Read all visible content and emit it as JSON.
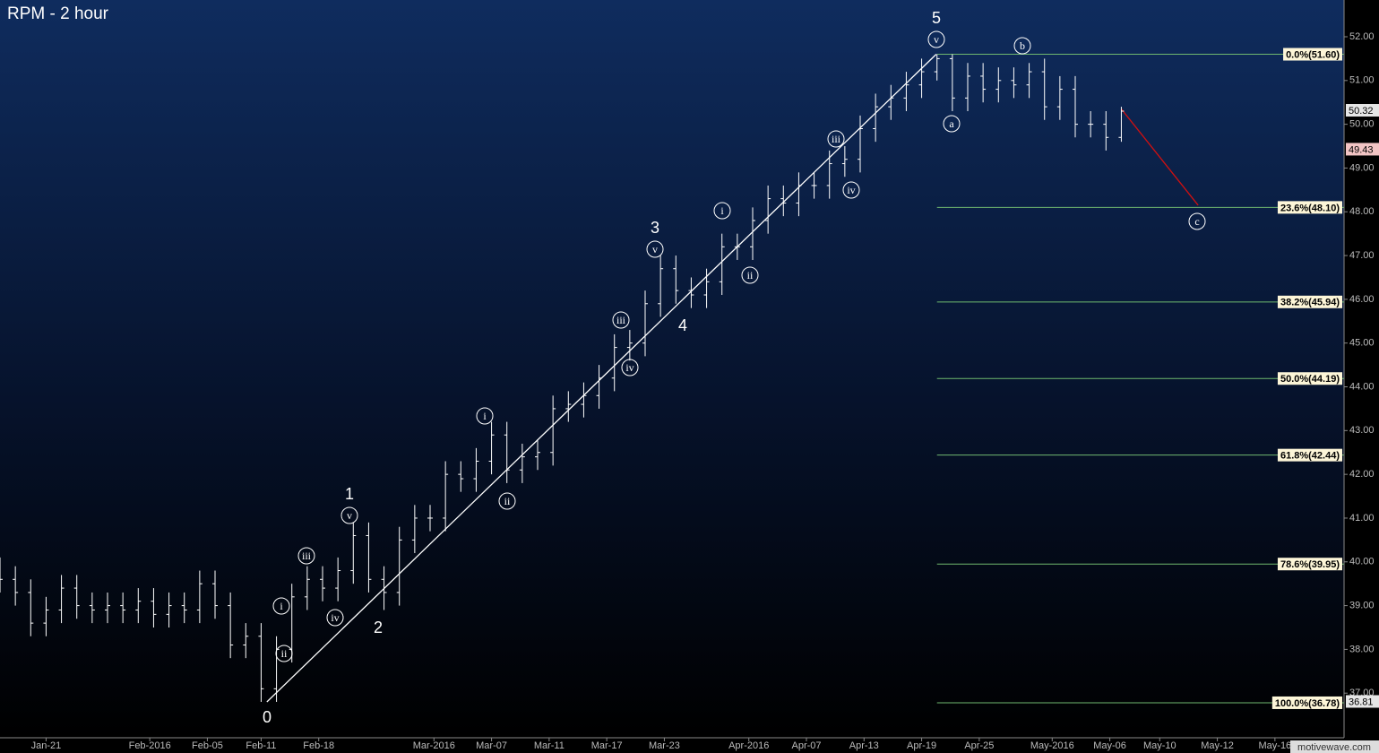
{
  "chart_data": {
    "type": "ohlc",
    "title": "RPM - 2 hour",
    "watermark": "motivewave.com",
    "bar_color": "#ffffff",
    "xlim": [
      0,
      350
    ],
    "ylim": [
      35.98,
      52.84
    ],
    "xticks": [
      {
        "value": 12,
        "label": "Jan-21"
      },
      {
        "value": 39,
        "label": "Feb-2016"
      },
      {
        "value": 54,
        "label": "Feb-05"
      },
      {
        "value": 68,
        "label": "Feb-11"
      },
      {
        "value": 83,
        "label": "Feb-18"
      },
      {
        "value": 113,
        "label": "Mar-2016"
      },
      {
        "value": 128,
        "label": "Mar-07"
      },
      {
        "value": 143,
        "label": "Mar-11"
      },
      {
        "value": 158,
        "label": "Mar-17"
      },
      {
        "value": 173,
        "label": "Mar-23"
      },
      {
        "value": 195,
        "label": "Apr-2016"
      },
      {
        "value": 210,
        "label": "Apr-07"
      },
      {
        "value": 225,
        "label": "Apr-13"
      },
      {
        "value": 240,
        "label": "Apr-19"
      },
      {
        "value": 255,
        "label": "Apr-25"
      },
      {
        "value": 274,
        "label": "May-2016"
      },
      {
        "value": 289,
        "label": "May-06"
      },
      {
        "value": 302,
        "label": "May-10"
      },
      {
        "value": 317,
        "label": "May-12"
      },
      {
        "value": 332,
        "label": "May-16"
      }
    ],
    "yticks": [
      {
        "value": 52,
        "label": "52.00"
      },
      {
        "value": 51,
        "label": "51.00"
      },
      {
        "value": 50,
        "label": "50.00"
      },
      {
        "value": 49,
        "label": "49.00"
      },
      {
        "value": 48,
        "label": "48.00"
      },
      {
        "value": 47,
        "label": "47.00"
      },
      {
        "value": 46,
        "label": "46.00"
      },
      {
        "value": 45,
        "label": "45.00"
      },
      {
        "value": 44,
        "label": "44.00"
      },
      {
        "value": 43,
        "label": "43.00"
      },
      {
        "value": 42,
        "label": "42.00"
      },
      {
        "value": 41,
        "label": "41.00"
      },
      {
        "value": 40,
        "label": "40.00"
      },
      {
        "value": 39,
        "label": "39.00"
      },
      {
        "value": 38,
        "label": "38.00"
      },
      {
        "value": 37,
        "label": "37.00"
      }
    ],
    "x": [
      0,
      4,
      8,
      12,
      16,
      20,
      24,
      28,
      32,
      36,
      40,
      44,
      48,
      52,
      56,
      60,
      64,
      68,
      72,
      76,
      80,
      84,
      88,
      92,
      96,
      100,
      104,
      108,
      112,
      116,
      120,
      124,
      128,
      132,
      136,
      140,
      144,
      148,
      152,
      156,
      160,
      164,
      168,
      172,
      176,
      180,
      184,
      188,
      192,
      196,
      200,
      204,
      208,
      212,
      216,
      220,
      224,
      228,
      232,
      236,
      240,
      244,
      248,
      252,
      256,
      260,
      264,
      268,
      272,
      276,
      280,
      284,
      288,
      292
    ],
    "open": [
      39.8,
      39.6,
      39.3,
      38.6,
      38.9,
      39.4,
      39.0,
      38.9,
      39.0,
      38.9,
      39.1,
      38.8,
      39.0,
      38.9,
      39.5,
      39.0,
      38.1,
      38.3,
      37.1,
      38.0,
      39.2,
      39.6,
      39.4,
      39.8,
      40.6,
      39.6,
      39.3,
      40.5,
      41.0,
      41.0,
      42.0,
      41.9,
      42.3,
      42.9,
      42.1,
      42.4,
      42.5,
      43.5,
      43.6,
      43.8,
      44.2,
      44.9,
      45.0,
      45.9,
      46.7,
      46.2,
      46.1,
      46.4,
      47.2,
      47.2,
      47.8,
      48.3,
      48.2,
      48.6,
      48.6,
      49.1,
      49.2,
      49.9,
      50.4,
      50.6,
      50.9,
      51.2,
      51.5,
      50.6,
      51.1,
      50.8,
      51.0,
      50.9,
      51.2,
      50.4,
      50.8,
      50.0,
      50.0,
      49.7
    ],
    "high": [
      40.1,
      39.9,
      39.6,
      39.2,
      39.7,
      39.7,
      39.3,
      39.3,
      39.3,
      39.4,
      39.4,
      39.3,
      39.3,
      39.8,
      39.8,
      39.3,
      38.6,
      38.6,
      38.3,
      39.5,
      39.9,
      39.9,
      40.1,
      40.9,
      40.9,
      39.9,
      40.8,
      41.3,
      41.3,
      42.3,
      42.3,
      42.6,
      43.2,
      43.2,
      42.7,
      42.8,
      43.8,
      43.9,
      44.1,
      44.5,
      45.2,
      45.3,
      46.2,
      47.0,
      47.0,
      46.5,
      46.7,
      47.5,
      47.5,
      48.1,
      48.6,
      48.6,
      48.9,
      48.9,
      49.4,
      49.5,
      50.2,
      50.7,
      50.9,
      51.2,
      51.5,
      51.6,
      51.6,
      51.4,
      51.4,
      51.3,
      51.3,
      51.4,
      51.5,
      51.1,
      51.1,
      50.3,
      50.3,
      50.4
    ],
    "low": [
      39.3,
      39.0,
      38.3,
      38.3,
      38.6,
      38.7,
      38.6,
      38.6,
      38.6,
      38.6,
      38.5,
      38.5,
      38.6,
      38.6,
      38.7,
      37.8,
      37.8,
      36.8,
      36.8,
      37.7,
      38.9,
      39.1,
      39.1,
      39.5,
      39.3,
      38.9,
      39.0,
      40.2,
      40.7,
      40.7,
      41.6,
      41.6,
      42.0,
      41.8,
      41.8,
      42.1,
      42.2,
      43.2,
      43.3,
      43.5,
      43.9,
      44.6,
      44.7,
      45.6,
      45.9,
      45.8,
      45.8,
      46.1,
      46.9,
      46.9,
      47.5,
      47.9,
      47.9,
      48.3,
      48.3,
      48.8,
      48.9,
      49.6,
      50.1,
      50.3,
      50.6,
      51.0,
      50.3,
      50.3,
      50.5,
      50.5,
      50.6,
      50.6,
      50.1,
      50.1,
      49.7,
      49.7,
      49.4,
      49.6
    ],
    "close": [
      39.6,
      39.3,
      38.6,
      38.9,
      39.4,
      39.0,
      38.9,
      39.0,
      38.9,
      39.1,
      38.8,
      39.0,
      38.9,
      39.5,
      39.0,
      38.1,
      38.3,
      37.1,
      38.0,
      39.2,
      39.6,
      39.4,
      39.8,
      40.6,
      39.6,
      39.3,
      40.5,
      41.0,
      41.0,
      42.0,
      41.9,
      42.3,
      42.9,
      42.1,
      42.4,
      42.5,
      43.5,
      43.6,
      43.8,
      44.2,
      44.9,
      45.0,
      45.9,
      46.7,
      46.2,
      46.1,
      46.4,
      47.2,
      47.2,
      47.8,
      48.3,
      48.2,
      48.6,
      48.6,
      49.1,
      49.2,
      49.9,
      50.4,
      50.6,
      50.9,
      51.2,
      51.5,
      50.6,
      51.1,
      50.8,
      51.0,
      50.9,
      51.2,
      50.4,
      50.8,
      50.0,
      50.0,
      49.7,
      50.3
    ],
    "trendline": {
      "color": "#ffffff",
      "x": [
        69.5,
        243.8
      ],
      "values": [
        36.8,
        51.6
      ]
    },
    "projection": {
      "color": "#d01010",
      "x": [
        292,
        312
      ],
      "values": [
        50.35,
        48.15
      ]
    },
    "fib_color": "#6fb86f",
    "fib_start": 244,
    "fib_levels": [
      {
        "value": 51.6,
        "label": "0.0%(51.60)"
      },
      {
        "value": 48.1,
        "label": "23.6%(48.10)"
      },
      {
        "value": 45.94,
        "label": "38.2%(45.94)"
      },
      {
        "value": 44.19,
        "label": "50.0%(44.19)"
      },
      {
        "value": 42.44,
        "label": "61.8%(42.44)"
      },
      {
        "value": 39.95,
        "label": "78.6%(39.95)"
      },
      {
        "value": 36.78,
        "label": "100.0%(36.78)"
      }
    ],
    "price_markers": [
      {
        "value": 50.32,
        "color": "#e6e6e6"
      },
      {
        "value": 49.43,
        "color": "#f2c4c4"
      },
      {
        "value": 36.81,
        "color": "#e6e6e6"
      }
    ],
    "wave_labels": [
      {
        "text": "0",
        "circled": false
      },
      {
        "text": "i",
        "circled": true
      },
      {
        "text": "ii",
        "circled": true
      },
      {
        "text": "iii",
        "circled": true
      },
      {
        "text": "iv",
        "circled": true
      },
      {
        "text": "v",
        "circled": true
      },
      {
        "text": "1",
        "circled": false
      },
      {
        "text": "2",
        "circled": false
      },
      {
        "text": "i",
        "circled": true
      },
      {
        "text": "ii",
        "circled": true
      },
      {
        "text": "iii",
        "circled": true
      },
      {
        "text": "iv",
        "circled": true
      },
      {
        "text": "v",
        "circled": true
      },
      {
        "text": "3",
        "circled": false
      },
      {
        "text": "4",
        "circled": false
      },
      {
        "text": "i",
        "circled": true
      },
      {
        "text": "ii",
        "circled": true
      },
      {
        "text": "iii",
        "circled": true
      },
      {
        "text": "iv",
        "circled": true
      },
      {
        "text": "v",
        "circled": true
      },
      {
        "text": "5",
        "circled": false
      },
      {
        "text": "a",
        "circled": true
      },
      {
        "text": "b",
        "circled": true
      },
      {
        "text": "c",
        "circled": true
      }
    ]
  }
}
